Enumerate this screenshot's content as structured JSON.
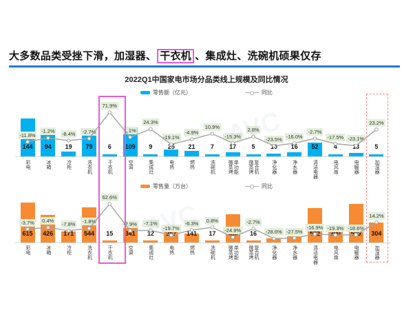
{
  "headline": {
    "pre": "大多数品类受挫下滑，加湿器、",
    "highlight": "干衣机",
    "post": "、集成灶、洗碗机硕果仅存"
  },
  "chart_title": "2022Q1中国家电市场分品类线上规模及同比情况",
  "watermark": "AVC",
  "colors": {
    "bar_revenue": "#00b0f0",
    "bar_volume": "#f78b33",
    "yoy_line": "#a6a6a6",
    "pct_label_bg": "#e2efda",
    "headline_underline": "#2478c8",
    "highlight_pink": "#ea57d8",
    "highlight_red_dashed": "#fd8181"
  },
  "highlights": [
    {
      "category": "干衣机",
      "style": "pink-solid"
    },
    {
      "category": "加湿器",
      "style": "red-dashed"
    }
  ],
  "chart_data": [
    {
      "type": "bar",
      "legend_bar": "零售额（亿元）",
      "legend_line": "同比",
      "categories": [
        "彩电",
        "冰箱",
        "冷柜",
        "洗衣机",
        "干衣机",
        "空调",
        "集成灶",
        "电热",
        "燃热",
        "洗碗机",
        "微蒸烤\n单功能",
        "微蒸烤\n复合机",
        "净化器",
        "净水器",
        "清洁电器",
        "电风扇",
        "电暖器",
        "加湿器"
      ],
      "series": [
        {
          "name": "零售额(亿元)",
          "values": [
            144,
            94,
            19,
            79,
            6,
            109,
            9,
            25,
            21,
            7,
            17,
            5,
            10,
            16,
            52,
            4,
            13,
            5
          ]
        },
        {
          "name": "同比",
          "values": [
            "-11.8%",
            "-1.2%",
            "-8.4%",
            "-2.7%",
            "71.9%",
            "1.1%",
            "24.3%",
            "-19.1%",
            "-4.9%",
            "10.9%",
            "-15.3%",
            "2.8%",
            "-23.5%",
            "-16.0%",
            "-2.7%",
            "-17.5%",
            "-23.1%",
            "23.2%"
          ]
        }
      ],
      "legend_position": "top",
      "grid": "off"
    },
    {
      "type": "bar",
      "legend_bar": "零售量（万台）",
      "legend_line": "同比",
      "categories": [
        "彩电",
        "冰箱",
        "冷柜",
        "洗衣机",
        "干衣机",
        "空调",
        "集成灶",
        "电热",
        "燃热",
        "洗碗机",
        "微蒸烤\n单功能",
        "微蒸烤\n复合机",
        "净化器",
        "净水器",
        "清洁电器",
        "电风扇",
        "电暖器",
        "加湿器"
      ],
      "series": [
        {
          "name": "零售量(万台)",
          "values": [
            615,
            426,
            171,
            544,
            15,
            341,
            12,
            257,
            141,
            17,
            436,
            16,
            63,
            98,
            532,
            200,
            589,
            304
          ]
        },
        {
          "name": "同比",
          "values": [
            "-3.7%",
            "0.4%",
            "-7.8%",
            "-1.8%",
            "62.6%",
            "-7.9%",
            "-7.1%",
            "-19.7%",
            "-6.3%",
            "0.8%",
            "-24.9%",
            "-2.7%",
            "-28.6%",
            "-27.5%",
            "-16.9%",
            "-19.3%",
            "-18.6%",
            "14.2%"
          ]
        }
      ],
      "legend_position": "top",
      "grid": "off"
    }
  ]
}
